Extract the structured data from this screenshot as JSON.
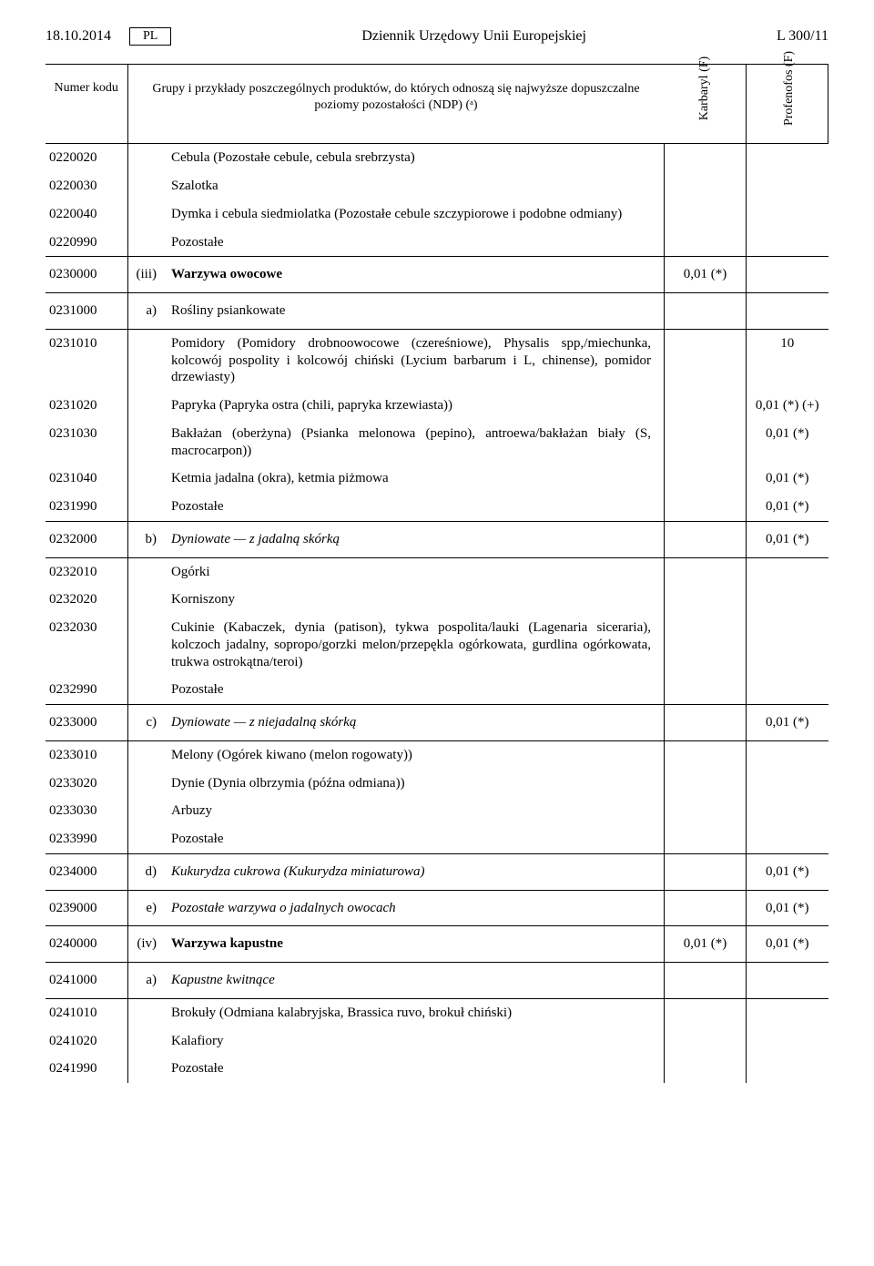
{
  "header": {
    "date": "18.10.2014",
    "lang": "PL",
    "title": "Dziennik Urzędowy Unii Europejskiej",
    "page": "L 300/11"
  },
  "columns": {
    "num": "Numer kodu",
    "desc": "Grupy i przykłady poszczególnych produktów, do których odnoszą się najwyższe dopuszczalne poziomy pozostałości (NDP) (ᵃ)",
    "k": "Karbaryl (F)",
    "p": "Profenofos (F)"
  },
  "rows": [
    {
      "num": "0220020",
      "desc": "Cebula (Pozostałe cebule, cebula srebrzysta)"
    },
    {
      "num": "0220030",
      "desc": "Szalotka"
    },
    {
      "num": "0220040",
      "desc": "Dymka i cebula siedmiolatka (Pozostałe cebule szczypiorowe i podobne odmiany)"
    },
    {
      "num": "0220990",
      "desc": "Pozostałe"
    },
    {
      "num": "0230000",
      "mark": "(iii)",
      "desc": "Warzywa owocowe",
      "bold": true,
      "k": "0,01 (*)",
      "sec": true
    },
    {
      "num": "0231000",
      "mark": "a)",
      "desc": "Rośliny psiankowate",
      "sec": true
    },
    {
      "num": "0231010",
      "desc": "Pomidory (Pomidory drobnoowocowe (czereśniowe), Physalis spp,/miechunka, kolcowój pospolity i kolcowój chiński (Lycium barbarum i L, chinense), pomidor drzewiasty)",
      "p": "10"
    },
    {
      "num": "0231020",
      "desc": "Papryka (Papryka ostra (chili, papryka krzewiasta))",
      "p": "0,01 (*) (+)"
    },
    {
      "num": "0231030",
      "desc": "Bakłażan (oberżyna) (Psianka melonowa (pepino), antroewa/bakłażan biały (S, macrocarpon))",
      "p": "0,01 (*)"
    },
    {
      "num": "0231040",
      "desc": "Ketmia jadalna (okra), ketmia piżmowa",
      "p": "0,01 (*)"
    },
    {
      "num": "0231990",
      "desc": "Pozostałe",
      "p": "0,01 (*)"
    },
    {
      "num": "0232000",
      "mark": "b)",
      "desc": "Dyniowate — z jadalną skórką",
      "italic": true,
      "p": "0,01 (*)",
      "sec": true
    },
    {
      "num": "0232010",
      "desc": "Ogórki"
    },
    {
      "num": "0232020",
      "desc": "Korniszony"
    },
    {
      "num": "0232030",
      "desc": "Cukinie (Kabaczek, dynia (patison), tykwa pospolita/lauki (Lagenaria siceraria), kolczoch jadalny, sopropo/gorzki melon/przepękla ogórkowata, gurdlina ogórkowata, trukwa ostrokątna/teroi)"
    },
    {
      "num": "0232990",
      "desc": "Pozostałe"
    },
    {
      "num": "0233000",
      "mark": "c)",
      "desc": "Dyniowate — z niejadalną skórką",
      "italic": true,
      "p": "0,01 (*)",
      "sec": true
    },
    {
      "num": "0233010",
      "desc": "Melony (Ogórek kiwano (melon rogowaty))"
    },
    {
      "num": "0233020",
      "desc": "Dynie (Dynia olbrzymia (późna odmiana))"
    },
    {
      "num": "0233030",
      "desc": "Arbuzy"
    },
    {
      "num": "0233990",
      "desc": "Pozostałe"
    },
    {
      "num": "0234000",
      "mark": "d)",
      "desc": "Kukurydza cukrowa (Kukurydza miniaturowa)",
      "italic": true,
      "p": "0,01 (*)",
      "sec": true
    },
    {
      "num": "0239000",
      "mark": "e)",
      "desc": "Pozostałe warzywa o jadalnych owocach",
      "italic": true,
      "p": "0,01 (*)",
      "sec": true
    },
    {
      "num": "0240000",
      "mark": "(iv)",
      "desc": "Warzywa kapustne",
      "bold": true,
      "k": "0,01 (*)",
      "p": "0,01 (*)",
      "sec": true
    },
    {
      "num": "0241000",
      "mark": "a)",
      "desc": "Kapustne kwitnące",
      "italic": true,
      "sec": true
    },
    {
      "num": "0241010",
      "desc": "Brokuły (Odmiana kalabryjska, Brassica ruvo, brokuł chiński)"
    },
    {
      "num": "0241020",
      "desc": "Kalafiory"
    },
    {
      "num": "0241990",
      "desc": "Pozostałe"
    }
  ]
}
